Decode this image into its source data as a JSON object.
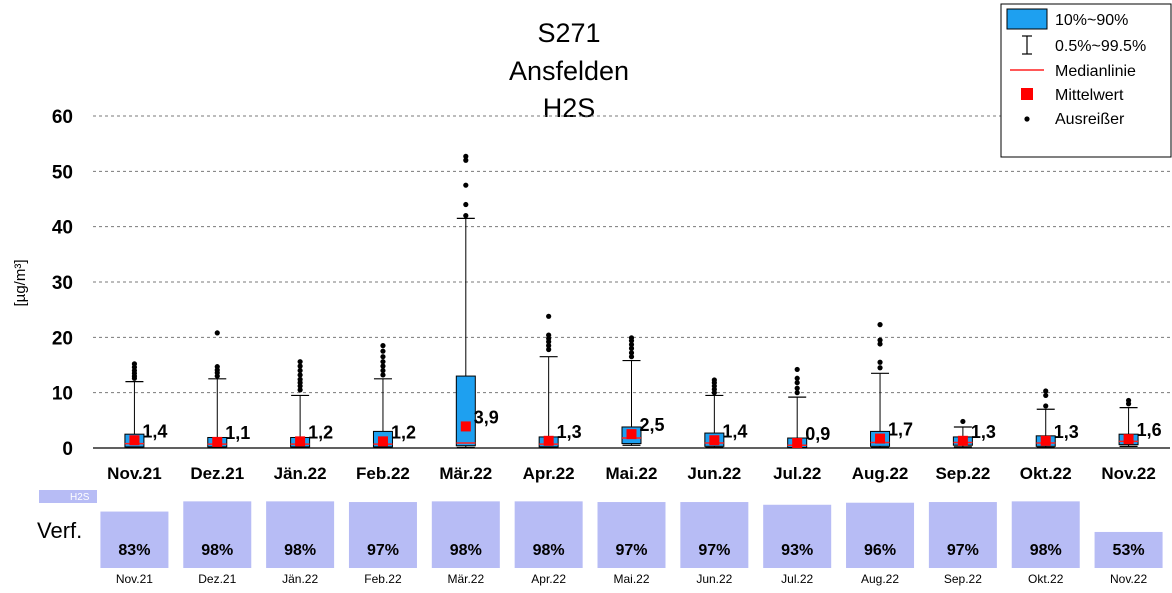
{
  "chart_data": {
    "type": "box",
    "title": [
      "S271",
      "Ansfelden",
      "H2S"
    ],
    "ylabel": "[µg/m³]",
    "ylim": [
      0,
      60
    ],
    "yticks": [
      0,
      10,
      20,
      30,
      40,
      50,
      60
    ],
    "grid": true,
    "categories": [
      "Nov.21",
      "Dez.21",
      "Jän.22",
      "Feb.22",
      "Mär.22",
      "Apr.22",
      "Mai.22",
      "Jun.22",
      "Jul.22",
      "Aug.22",
      "Sep.22",
      "Okt.22",
      "Nov.22"
    ],
    "boxes": [
      {
        "p10": 0.2,
        "p90": 2.5,
        "median": 0.8,
        "mean": 1.4,
        "mean_label": "1,4",
        "w_low": 0.1,
        "w_high": 12.0,
        "outliers": [
          12.6,
          13.0,
          13.5,
          14.0,
          14.6,
          15.2
        ]
      },
      {
        "p10": 0.2,
        "p90": 1.9,
        "median": 0.7,
        "mean": 1.1,
        "mean_label": "1,1",
        "w_low": 0.1,
        "w_high": 12.5,
        "outliers": [
          13.0,
          13.6,
          14.1,
          14.7,
          20.8
        ]
      },
      {
        "p10": 0.2,
        "p90": 1.9,
        "median": 0.7,
        "mean": 1.2,
        "mean_label": "1,2",
        "w_low": 0.1,
        "w_high": 9.5,
        "outliers": [
          10.5,
          11.2,
          11.8,
          12.4,
          13.2,
          14.0,
          14.8,
          15.6
        ]
      },
      {
        "p10": 0.2,
        "p90": 3.0,
        "median": 0.7,
        "mean": 1.2,
        "mean_label": "1,2",
        "w_low": 0.1,
        "w_high": 12.5,
        "outliers": [
          13.2,
          14.0,
          14.8,
          15.6,
          16.5,
          17.5,
          18.5
        ]
      },
      {
        "p10": 0.4,
        "p90": 13.0,
        "median": 0.9,
        "mean": 3.9,
        "mean_label": "3,9",
        "w_low": 0.1,
        "w_high": 41.5,
        "outliers": [
          42.0,
          44.0,
          47.5,
          52.0,
          52.7
        ]
      },
      {
        "p10": 0.2,
        "p90": 2.0,
        "median": 0.7,
        "mean": 1.3,
        "mean_label": "1,3",
        "w_low": 0.1,
        "w_high": 16.5,
        "outliers": [
          17.8,
          18.5,
          19.2,
          19.8,
          20.4,
          23.8
        ]
      },
      {
        "p10": 0.8,
        "p90": 3.8,
        "median": 1.8,
        "mean": 2.5,
        "mean_label": "2,5",
        "w_low": 0.5,
        "w_high": 15.8,
        "outliers": [
          16.5,
          17.2,
          18.0,
          18.7,
          19.4,
          19.9
        ]
      },
      {
        "p10": 0.3,
        "p90": 2.7,
        "median": 0.9,
        "mean": 1.4,
        "mean_label": "1,4",
        "w_low": 0.1,
        "w_high": 9.5,
        "outliers": [
          10.0,
          10.6,
          11.2,
          11.8,
          12.3
        ]
      },
      {
        "p10": 0.1,
        "p90": 1.8,
        "median": 0.5,
        "mean": 0.9,
        "mean_label": "0,9",
        "w_low": 0.1,
        "w_high": 9.2,
        "outliers": [
          10.0,
          10.8,
          11.8,
          12.6,
          14.2
        ]
      },
      {
        "p10": 0.3,
        "p90": 3.0,
        "median": 1.0,
        "mean": 1.7,
        "mean_label": "1,7",
        "w_low": 0.1,
        "w_high": 13.5,
        "outliers": [
          14.5,
          15.5,
          18.8,
          19.5,
          22.3
        ]
      },
      {
        "p10": 0.5,
        "p90": 2.0,
        "median": 1.0,
        "mean": 1.3,
        "mean_label": "1,3",
        "w_low": 0.2,
        "w_high": 3.8,
        "outliers": [
          4.8
        ]
      },
      {
        "p10": 0.3,
        "p90": 2.2,
        "median": 0.9,
        "mean": 1.3,
        "mean_label": "1,3",
        "w_low": 0.1,
        "w_high": 7.0,
        "outliers": [
          7.6,
          9.5,
          10.3
        ]
      },
      {
        "p10": 0.6,
        "p90": 2.5,
        "median": 1.2,
        "mean": 1.6,
        "mean_label": "1,6",
        "w_low": 0.3,
        "w_high": 7.3,
        "outliers": [
          8.0,
          8.6
        ]
      }
    ],
    "legend": {
      "position": "top-right",
      "entries": [
        "10%~90%",
        "0.5%~99.5%",
        "Medianlinie",
        "Mittelwert",
        "Ausreißer"
      ]
    },
    "colors": {
      "box": "#1ea0f0",
      "median": "#ff2020",
      "mean": "#ff0000",
      "availability": "#b7bcf5"
    },
    "availability": {
      "label": "Verf.",
      "legend": "H2S",
      "values": [
        83,
        98,
        98,
        97,
        98,
        98,
        97,
        97,
        93,
        96,
        97,
        98,
        53
      ],
      "labels": [
        "83%",
        "98%",
        "98%",
        "97%",
        "98%",
        "98%",
        "97%",
        "97%",
        "93%",
        "96%",
        "97%",
        "98%",
        "53%"
      ]
    }
  }
}
